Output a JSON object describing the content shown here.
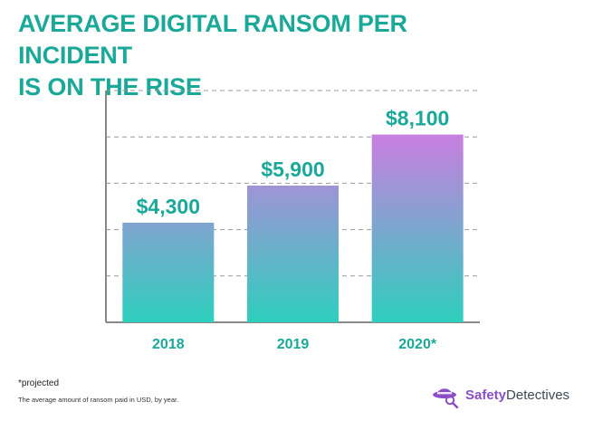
{
  "title_line1": "AVERAGE DIGITAL RANSOM PER INCIDENT",
  "title_line2": "IS ON THE RISE",
  "chart_data": {
    "type": "bar",
    "categories": [
      "2018",
      "2019",
      "2020*"
    ],
    "values": [
      4300,
      5900,
      8100
    ],
    "value_labels": [
      "$4,300",
      "$5,900",
      "$8,100"
    ],
    "title": "AVERAGE DIGITAL RANSOM PER INCIDENT IS ON THE RISE",
    "xlabel": "",
    "ylabel": "",
    "ylim": [
      0,
      10000
    ],
    "grid": true,
    "y_ticks_shown": false
  },
  "colors": {
    "title": "#1aa899",
    "value_label": "#1aa899",
    "category_label": "#1aa899",
    "bar_gradient_top": "#c97ee0",
    "bar_gradient_bottom": "#2ecfbd",
    "grid": "#9a9a9a",
    "axis": "#888888"
  },
  "footnote": "*projected",
  "caption": "The average amount of ransom paid in USD, by year.",
  "brand": {
    "part1": "Safety",
    "part2": "Detectives",
    "icon": "detective-hat-icon"
  }
}
